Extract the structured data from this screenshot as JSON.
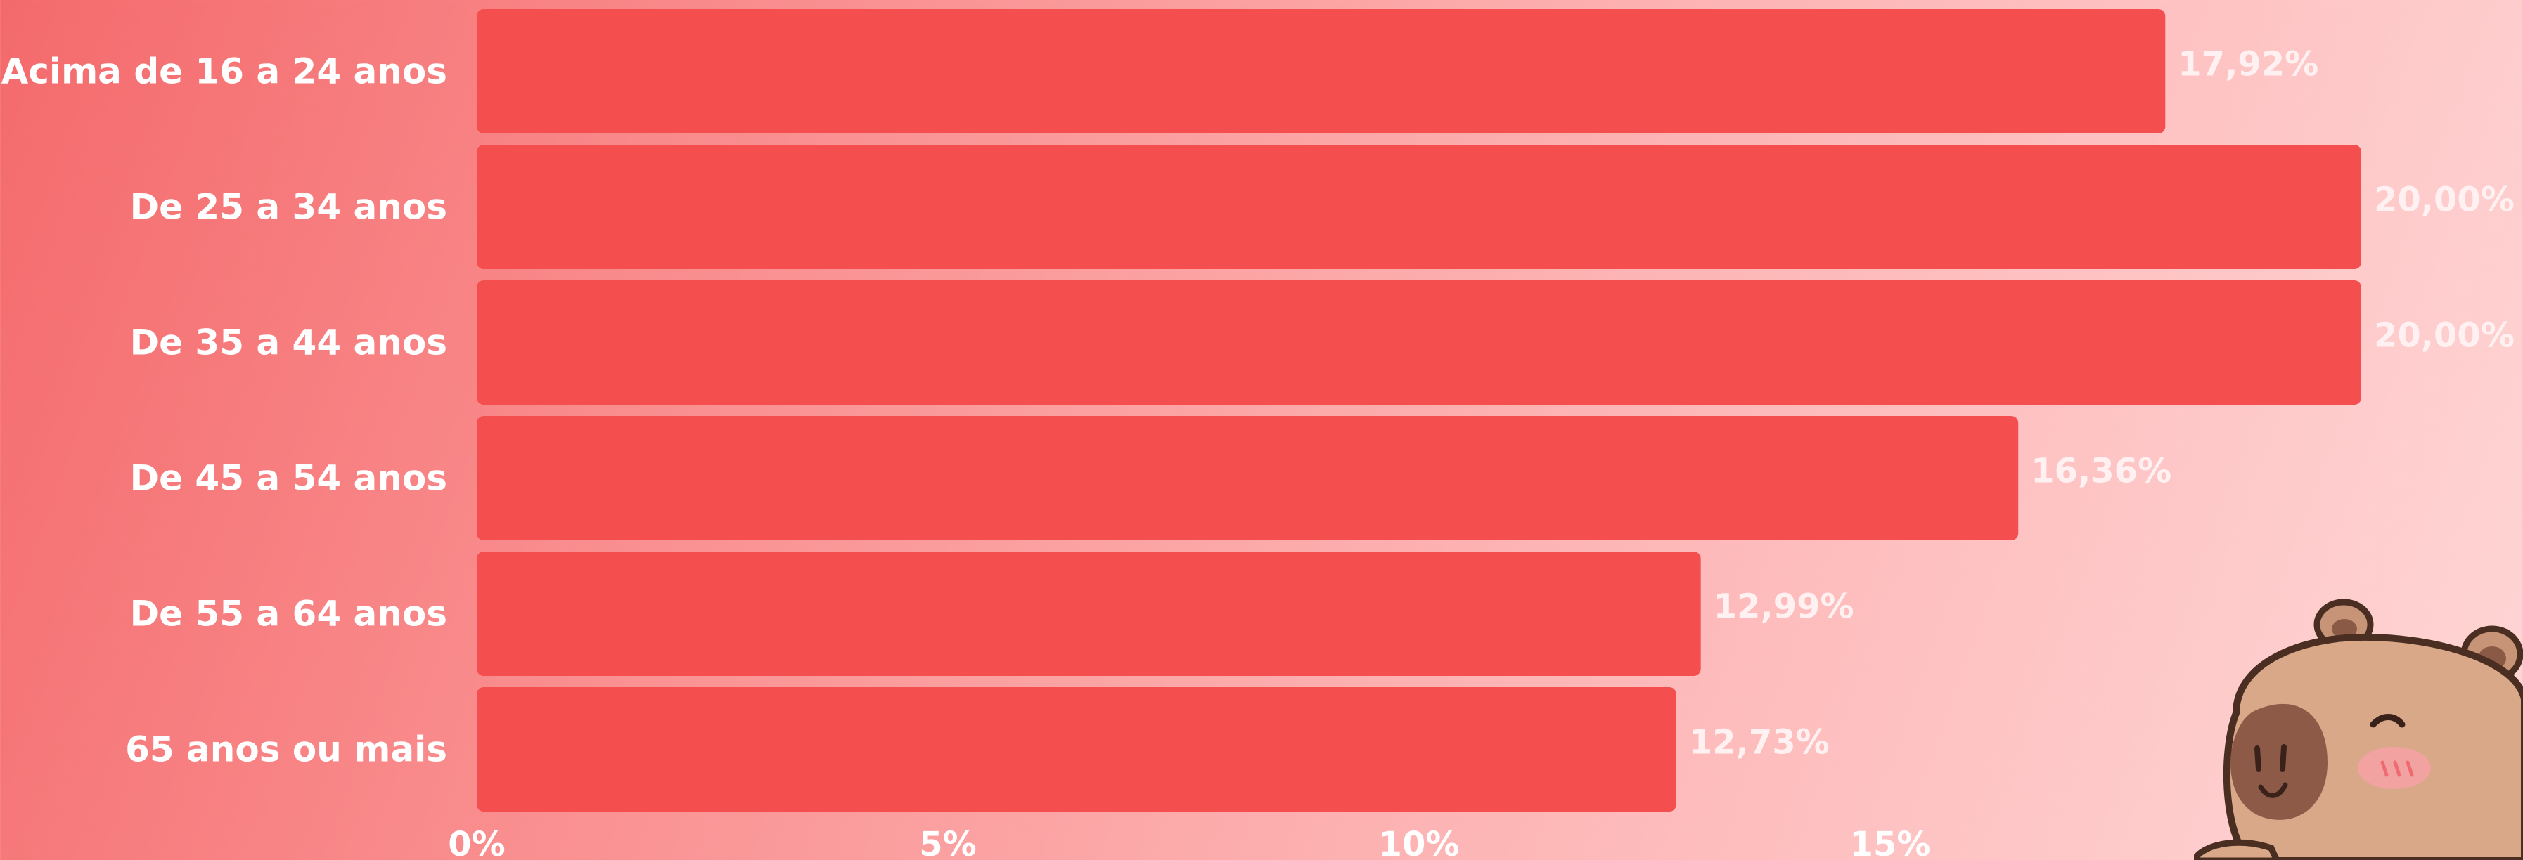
{
  "chart_data": {
    "type": "bar",
    "orientation": "horizontal",
    "categories": [
      "Acima de 16 a 24 anos",
      "De 25 a 34 anos",
      "De 35 a 44 anos",
      "De 45 a 54 anos",
      "De 55 a 64 anos",
      "65 anos ou mais"
    ],
    "values": [
      17.92,
      20.0,
      20.0,
      16.36,
      12.99,
      12.73
    ],
    "value_labels": [
      "17,92%",
      "20,00%",
      "20,00%",
      "16,36%",
      "12,99%",
      "12,73%"
    ],
    "x_ticks": [
      0,
      5,
      10,
      15
    ],
    "x_tick_labels": [
      "0%",
      "5%",
      "10%",
      "15%"
    ],
    "xlim": [
      0,
      20
    ],
    "grid": false,
    "title": "",
    "xlabel": "",
    "ylabel": "",
    "colors": {
      "bar": "#f44e4f",
      "label": "#ffffff"
    }
  },
  "decoration": {
    "mascot_icon": "capybara-icon"
  }
}
